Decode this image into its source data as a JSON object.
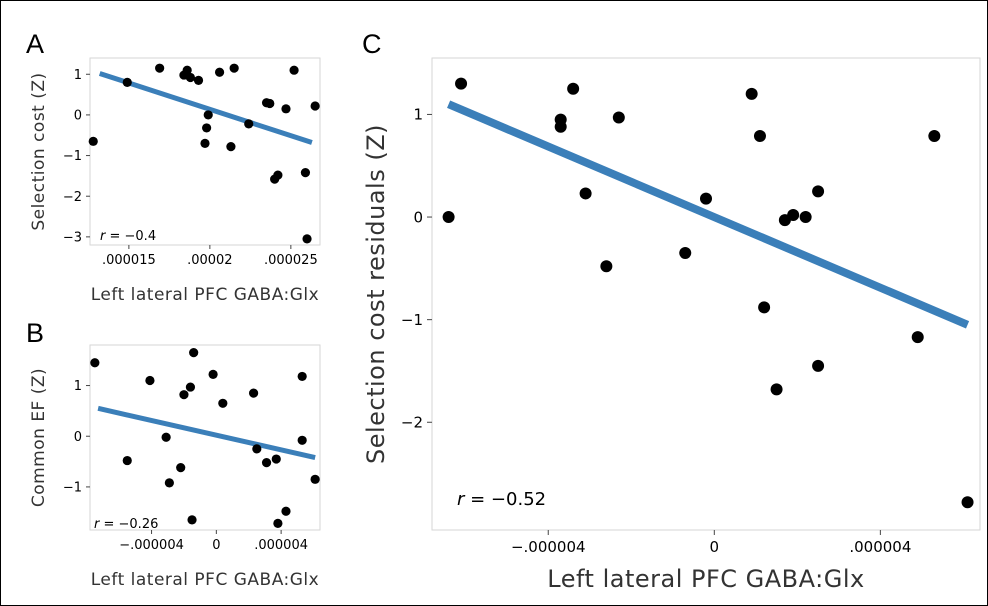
{
  "colors": {
    "line": "#3b7fb9",
    "point": "#000000",
    "frame": "#d6d6d6"
  },
  "chart_data": [
    {
      "panel": "A",
      "type": "scatter",
      "xlabel": "Left lateral PFC GABA:Glx",
      "ylabel": "Selection cost (Z)",
      "annotation": "r = −0.4",
      "xlim": [
        1.26e-05,
        2.68e-05
      ],
      "ylim": [
        -3.2,
        1.4
      ],
      "xticks": [
        1.5e-05,
        2e-05,
        2.5e-05
      ],
      "xtick_labels": [
        ".000015",
        ".00002",
        ".000025"
      ],
      "yticks": [
        -3,
        -2,
        -1,
        0,
        1
      ],
      "ytick_labels": [
        "−3",
        "−2",
        "−1",
        "0",
        "1"
      ],
      "points": [
        [
          1.28e-05,
          -0.65
        ],
        [
          1.49e-05,
          0.8
        ],
        [
          1.69e-05,
          1.15
        ],
        [
          1.84e-05,
          0.98
        ],
        [
          1.86e-05,
          1.1
        ],
        [
          1.88e-05,
          0.92
        ],
        [
          1.93e-05,
          0.85
        ],
        [
          1.97e-05,
          -0.7
        ],
        [
          1.98e-05,
          -0.32
        ],
        [
          1.99e-05,
          0.0
        ],
        [
          2.06e-05,
          1.05
        ],
        [
          2.13e-05,
          -0.78
        ],
        [
          2.15e-05,
          1.15
        ],
        [
          2.24e-05,
          -0.22
        ],
        [
          2.35e-05,
          0.3
        ],
        [
          2.37e-05,
          0.28
        ],
        [
          2.4e-05,
          -1.58
        ],
        [
          2.42e-05,
          -1.48
        ],
        [
          2.47e-05,
          0.15
        ],
        [
          2.52e-05,
          1.1
        ],
        [
          2.59e-05,
          -1.42
        ],
        [
          2.6e-05,
          -3.05
        ],
        [
          2.65e-05,
          0.22
        ]
      ],
      "fit": {
        "x": [
          1.32e-05,
          2.63e-05
        ],
        "y": [
          1.02,
          -0.68
        ]
      }
    },
    {
      "panel": "B",
      "type": "scatter",
      "xlabel": "Left lateral PFC GABA:Glx",
      "ylabel": "Common EF (Z)",
      "annotation": "r = −0.26",
      "xlim": [
        -7.8e-06,
        6.4e-06
      ],
      "ylim": [
        -1.85,
        1.8
      ],
      "xticks": [
        -4e-06,
        0,
        4e-06
      ],
      "xtick_labels": [
        "−.000004",
        "0",
        ".000004"
      ],
      "yticks": [
        -1,
        0,
        1
      ],
      "ytick_labels": [
        "−1",
        "0",
        "1"
      ],
      "points": [
        [
          -7.5e-06,
          1.45
        ],
        [
          -5.5e-06,
          -0.48
        ],
        [
          -4.1e-06,
          1.1
        ],
        [
          -3.1e-06,
          -0.02
        ],
        [
          -2.9e-06,
          -0.92
        ],
        [
          -2.2e-06,
          -0.62
        ],
        [
          -2e-06,
          0.82
        ],
        [
          -1.6e-06,
          0.97
        ],
        [
          -1.5e-06,
          -1.65
        ],
        [
          -1.4e-06,
          1.65
        ],
        [
          -2e-07,
          1.22
        ],
        [
          4e-07,
          0.65
        ],
        [
          2.3e-06,
          0.85
        ],
        [
          2.5e-06,
          -0.25
        ],
        [
          3.1e-06,
          -0.52
        ],
        [
          3.7e-06,
          -0.45
        ],
        [
          3.8e-06,
          -1.72
        ],
        [
          4.3e-06,
          -1.48
        ],
        [
          5.3e-06,
          1.18
        ],
        [
          5.3e-06,
          -0.08
        ],
        [
          6.1e-06,
          -0.85
        ]
      ],
      "fit": {
        "x": [
          -7.3e-06,
          6.1e-06
        ],
        "y": [
          0.55,
          -0.42
        ]
      }
    },
    {
      "panel": "C",
      "type": "scatter",
      "xlabel": "Left lateral PFC GABA:Glx",
      "ylabel": "Selection cost residuals (Z)",
      "annotation": "r = −0.52",
      "xlim": [
        -6.8e-06,
        6.4e-06
      ],
      "ylim": [
        -3.05,
        1.55
      ],
      "xticks": [
        -4e-06,
        0,
        4e-06
      ],
      "xtick_labels": [
        "−.000004",
        "0",
        ".000004"
      ],
      "yticks": [
        -2,
        -1,
        0,
        1
      ],
      "ytick_labels": [
        "−2",
        "−1",
        "0",
        "1"
      ],
      "points": [
        [
          -6.4e-06,
          0.0
        ],
        [
          -6.1e-06,
          1.3
        ],
        [
          -3.7e-06,
          0.88
        ],
        [
          -3.7e-06,
          0.95
        ],
        [
          -3.4e-06,
          1.25
        ],
        [
          -3.1e-06,
          0.23
        ],
        [
          -2.6e-06,
          -0.48
        ],
        [
          -2.3e-06,
          0.97
        ],
        [
          -7e-07,
          -0.35
        ],
        [
          -2e-07,
          0.18
        ],
        [
          9e-07,
          1.2
        ],
        [
          1.1e-06,
          0.79
        ],
        [
          1.2e-06,
          -0.88
        ],
        [
          1.5e-06,
          -1.68
        ],
        [
          1.7e-06,
          -0.03
        ],
        [
          1.9e-06,
          0.02
        ],
        [
          2.2e-06,
          0.0
        ],
        [
          2.5e-06,
          0.25
        ],
        [
          2.5e-06,
          -1.45
        ],
        [
          4.9e-06,
          -1.17
        ],
        [
          5.3e-06,
          0.79
        ],
        [
          6.1e-06,
          -2.78
        ]
      ],
      "fit": {
        "x": [
          -6.4e-06,
          6.1e-06
        ],
        "y": [
          1.1,
          -1.05
        ]
      }
    }
  ]
}
